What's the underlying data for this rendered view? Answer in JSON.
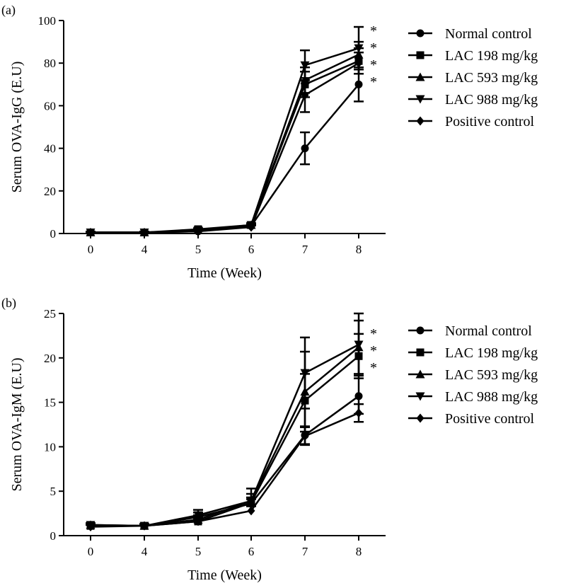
{
  "chart_data": [
    {
      "panel": "(a)",
      "type": "line",
      "xlabel": "Time (Week)",
      "ylabel": "Serum OVA-IgG (E.U)",
      "ylim": [
        0,
        100
      ],
      "yticks": [
        0,
        20,
        40,
        60,
        80,
        100
      ],
      "categories": [
        "0",
        "4",
        "5",
        "6",
        "7",
        "8"
      ],
      "series": [
        {
          "name": "Normal control",
          "marker": "circle",
          "values": [
            0.5,
            0.5,
            1,
            3.5,
            40,
            70
          ],
          "err": [
            0.3,
            0.3,
            0.5,
            0.8,
            7.5,
            8
          ]
        },
        {
          "name": "LAC 198 mg/kg",
          "marker": "square",
          "values": [
            0.5,
            0.5,
            2,
            4,
            70,
            81
          ],
          "err": [
            0.3,
            0.3,
            0.5,
            0.8,
            6,
            6
          ]
        },
        {
          "name": "LAC 593 mg/kg",
          "marker": "triangle",
          "values": [
            0.5,
            0.5,
            1.5,
            4,
            72,
            84
          ],
          "err": [
            0.3,
            0.3,
            0.5,
            0.8,
            6,
            6
          ]
        },
        {
          "name": "LAC 988 mg/kg",
          "marker": "triangle-down",
          "values": [
            0.5,
            0.5,
            1.5,
            4,
            79,
            87
          ],
          "err": [
            0.3,
            0.3,
            0.5,
            0.8,
            7,
            10
          ]
        },
        {
          "name": "Positive control",
          "marker": "diamond",
          "values": [
            0.5,
            0.5,
            1,
            3,
            65,
            80
          ],
          "err": [
            0.3,
            0.3,
            0.5,
            0.8,
            8,
            5
          ]
        }
      ],
      "annotations": [
        "*",
        "*",
        "*",
        "*"
      ],
      "legend": "right"
    },
    {
      "panel": "(b)",
      "type": "line",
      "xlabel": "Time (Week)",
      "ylabel": "Serum OVA-IgM (E.U)",
      "ylim": [
        0,
        25
      ],
      "yticks": [
        0,
        5,
        10,
        15,
        20,
        25
      ],
      "categories": [
        "0",
        "4",
        "5",
        "6",
        "7",
        "8"
      ],
      "series": [
        {
          "name": "Normal control",
          "marker": "circle",
          "values": [
            1.1,
            1.1,
            2.1,
            3.6,
            11.3,
            15.7
          ],
          "err": [
            0.2,
            0.2,
            0.5,
            0.5,
            1,
            2
          ]
        },
        {
          "name": "LAC 198 mg/kg",
          "marker": "square",
          "values": [
            1.1,
            1.1,
            1.6,
            3.7,
            15.2,
            20.2
          ],
          "err": [
            0.2,
            0.2,
            0.5,
            0.6,
            3,
            2.5
          ]
        },
        {
          "name": "LAC 593 mg/kg",
          "marker": "triangle",
          "values": [
            1.2,
            1.1,
            1.8,
            3.9,
            16.2,
            21.2
          ],
          "err": [
            0.2,
            0.2,
            0.5,
            0.8,
            4.5,
            3
          ]
        },
        {
          "name": "LAC 988 mg/kg",
          "marker": "triangle-down",
          "values": [
            1.2,
            1.1,
            2.3,
            3.9,
            18.3,
            21.5
          ],
          "err": [
            0.2,
            0.2,
            0.6,
            1.4,
            4,
            3.5
          ]
        },
        {
          "name": "Positive control",
          "marker": "diamond",
          "values": [
            1.0,
            1.1,
            1.6,
            2.8,
            11.2,
            13.8
          ],
          "err": [
            0.2,
            0.2,
            0.3,
            0.5,
            1,
            1
          ]
        }
      ],
      "annotations": [
        "*",
        "*",
        "*"
      ],
      "legend": "right"
    }
  ]
}
